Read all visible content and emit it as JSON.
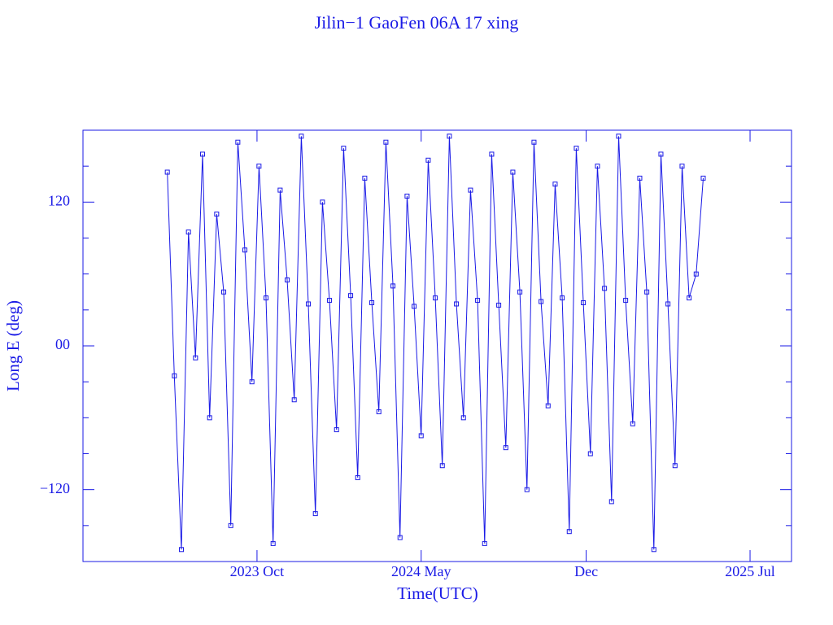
{
  "chart_data": {
    "type": "line",
    "title": "Jilin−1 GaoFen 06A 17 xing",
    "x_label": "Time(UTC)",
    "y_label": "Long E (deg)",
    "xlim": [
      2023.131,
      2025.643
    ],
    "xticks": [
      {
        "value": 2023.748,
        "label": "2023 Oct"
      },
      {
        "value": 2024.33,
        "label": "2024 May"
      },
      {
        "value": 2024.915,
        "label": "Dec"
      },
      {
        "value": 2025.496,
        "label": "2025 Jul"
      }
    ],
    "ylim": [
      -180,
      180
    ],
    "yticks": [
      {
        "value": -120,
        "label": "−120"
      },
      {
        "value": 0,
        "label": "00"
      },
      120
    ],
    "y_minor_ticks": [
      -150,
      -90,
      -60,
      -30,
      30,
      60,
      90,
      150
    ],
    "color": "#1a1ae6",
    "x": [
      2023.43,
      2023.455,
      2023.48,
      2023.505,
      2023.53,
      2023.555,
      2023.58,
      2023.605,
      2023.63,
      2023.655,
      2023.68,
      2023.705,
      2023.73,
      2023.755,
      2023.78,
      2023.805,
      2023.83,
      2023.855,
      2023.88,
      2023.905,
      2023.93,
      2023.955,
      2023.98,
      2024.005,
      2024.03,
      2024.055,
      2024.08,
      2024.105,
      2024.13,
      2024.155,
      2024.18,
      2024.205,
      2024.23,
      2024.255,
      2024.28,
      2024.305,
      2024.33,
      2024.355,
      2024.38,
      2024.405,
      2024.43,
      2024.455,
      2024.48,
      2024.505,
      2024.53,
      2024.555,
      2024.58,
      2024.605,
      2024.63,
      2024.655,
      2024.68,
      2024.705,
      2024.73,
      2024.755,
      2024.78,
      2024.805,
      2024.83,
      2024.855,
      2024.88,
      2024.905,
      2024.93,
      2024.955,
      2024.98,
      2025.005,
      2025.03,
      2025.055,
      2025.08,
      2025.105,
      2025.13,
      2025.155,
      2025.18,
      2025.205,
      2025.23,
      2025.255,
      2025.28,
      2025.305,
      2025.33
    ],
    "values": [
      145,
      -25,
      -170,
      95,
      -10,
      160,
      -60,
      110,
      45,
      -150,
      170,
      80,
      -30,
      150,
      40,
      -165,
      130,
      55,
      -45,
      175,
      35,
      -140,
      120,
      38,
      -70,
      165,
      42,
      -110,
      140,
      36,
      -55,
      170,
      50,
      -160,
      125,
      33,
      -75,
      155,
      40,
      -100,
      175,
      35,
      -60,
      130,
      38,
      -165,
      160,
      34,
      -85,
      145,
      45,
      -120,
      170,
      37,
      -50,
      135,
      40,
      -155,
      165,
      36,
      -90,
      150,
      48,
      -130,
      175,
      38,
      -65,
      140,
      45,
      -170,
      160,
      35,
      -100,
      150,
      40,
      60,
      140
    ]
  }
}
